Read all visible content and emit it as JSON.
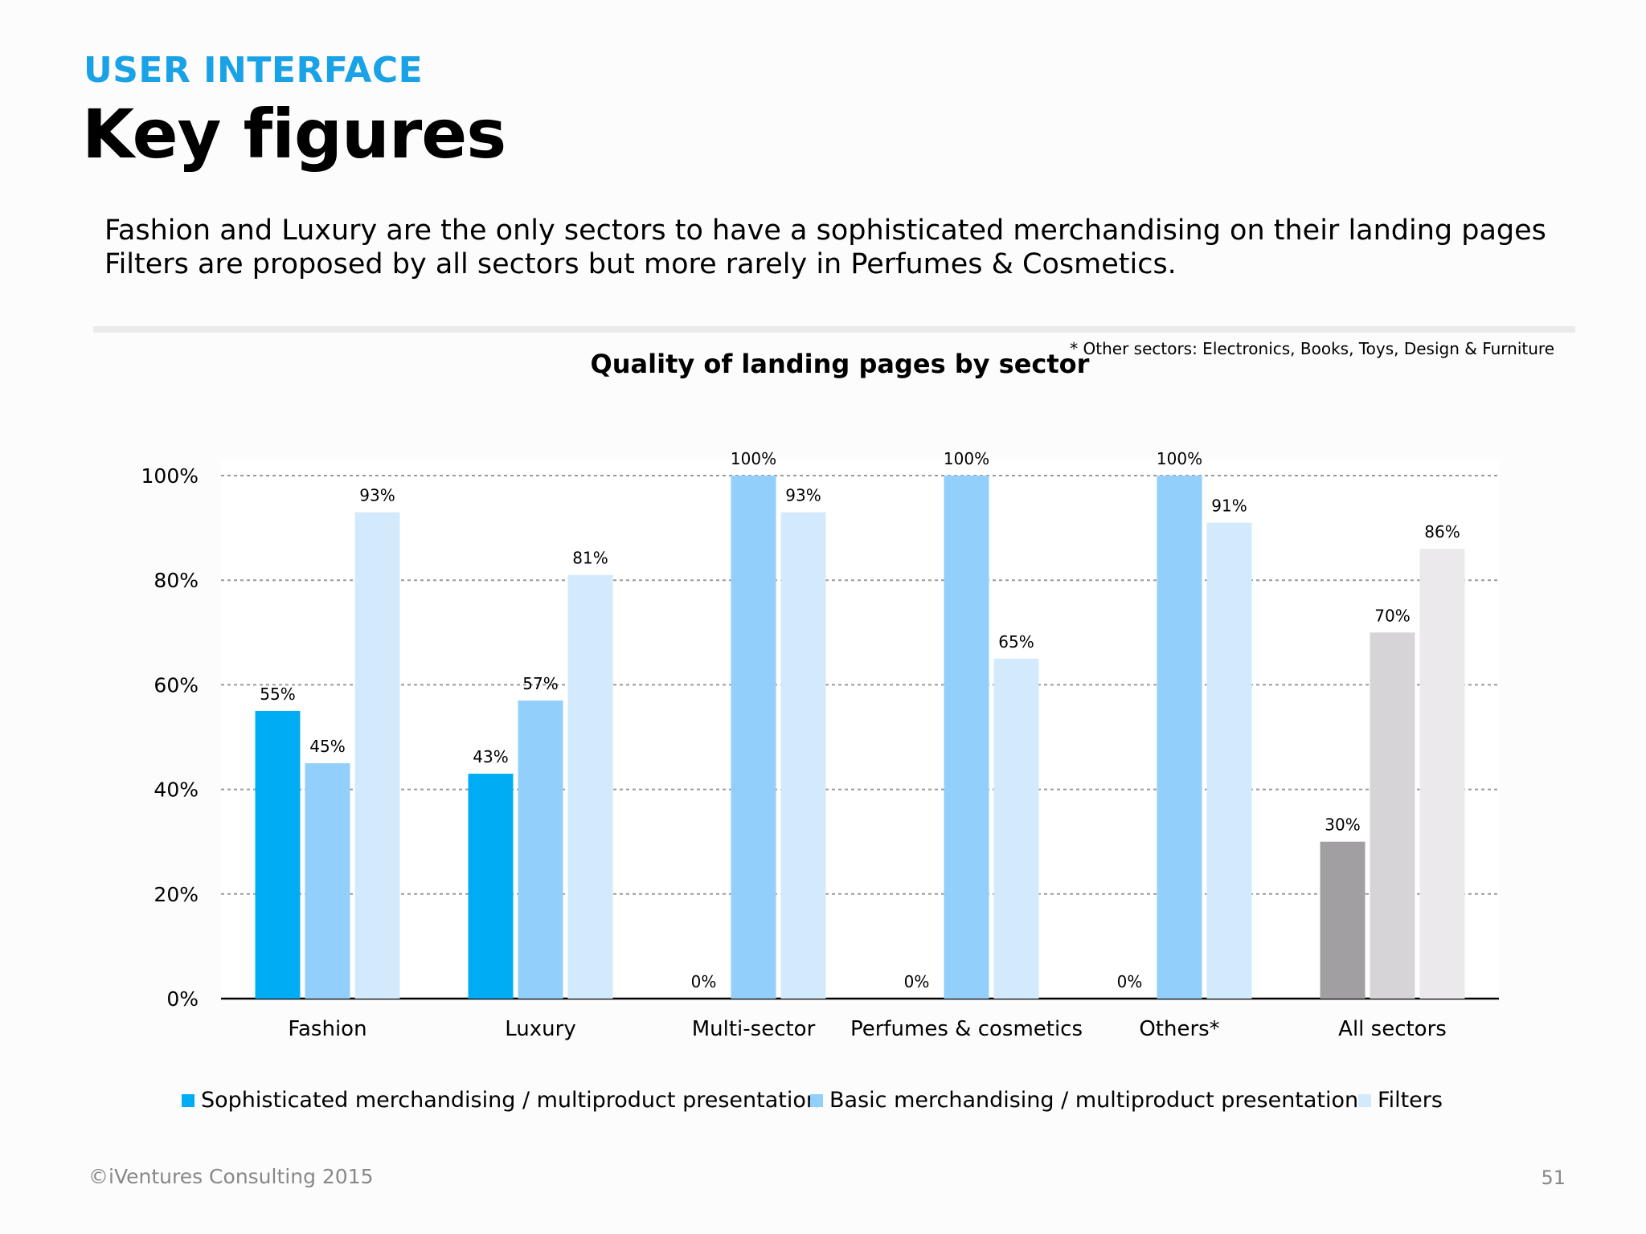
{
  "header": {
    "section_label": "USER INTERFACE",
    "title": "Key figures"
  },
  "summary": {
    "line1": "Fashion and Luxury are the only sectors to have a sophisticated merchandising on their landing pages",
    "line2": "Filters are proposed by all sectors but more rarely in Perfumes & Cosmetics."
  },
  "footnote": "* Other sectors: Electronics, Books, Toys, Design & Furniture",
  "chart_data": {
    "type": "bar",
    "title": "Quality of landing pages by sector",
    "categories": [
      "Fashion",
      "Luxury",
      "Multi-sector",
      "Perfumes & cosmetics",
      "Others*",
      "All sectors"
    ],
    "series": [
      {
        "name": "Sophisticated merchandising / multiproduct presentation",
        "values": [
          55,
          43,
          0,
          0,
          0,
          30
        ],
        "color": "#00adf5"
      },
      {
        "name": "Basic merchandising / multiproduct presentation",
        "values": [
          45,
          57,
          100,
          100,
          100,
          70
        ],
        "color": "#92cffa"
      },
      {
        "name": "Filters",
        "values": [
          93,
          81,
          93,
          65,
          91,
          86
        ],
        "color": "#d3eafc"
      }
    ],
    "highlight_category_colors": {
      "All sectors": [
        "#a19fa2",
        "#d6d4d7",
        "#ebe9ec"
      ]
    },
    "value_labels": [
      [
        "55%",
        "43%",
        "0%",
        "0%",
        "0%",
        "30%"
      ],
      [
        "45%",
        "57%",
        "100%",
        "100%",
        "100%",
        "70%"
      ],
      [
        "93%",
        "81%",
        "93%",
        "65%",
        "91%",
        "86%"
      ]
    ],
    "y_ticks": [
      "0%",
      "20%",
      "40%",
      "60%",
      "80%",
      "100%"
    ],
    "ylim": [
      0,
      100
    ],
    "grid": true,
    "legend_position": "bottom",
    "xlabel": "",
    "ylabel": ""
  },
  "footer": {
    "copyright": "©iVentures Consulting 2015",
    "page_number": "51"
  }
}
